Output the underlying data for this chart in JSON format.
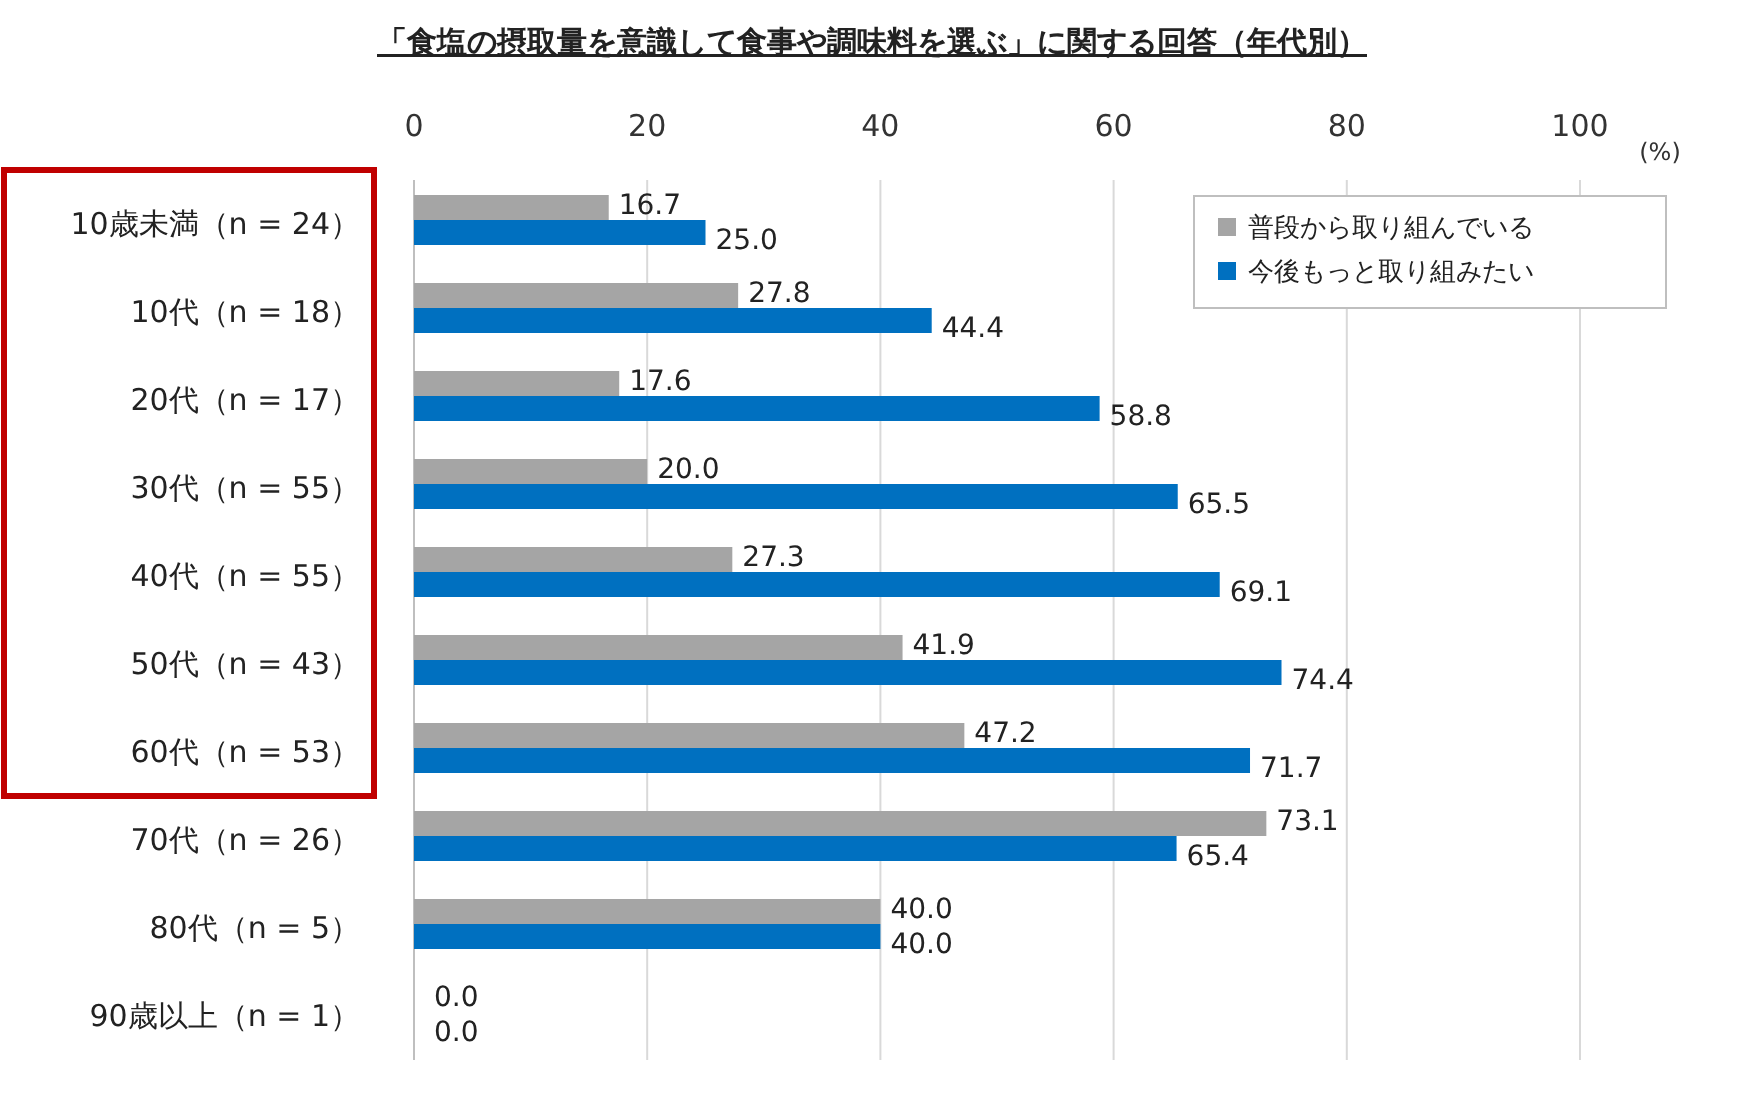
{
  "chart_data": {
    "type": "bar",
    "orientation": "horizontal",
    "title": "「食塩の摂取量を意識して食事や調味料を選ぶ」に関する回答（年代別）",
    "xlabel": "(%)",
    "categories": [
      "10歳未満（n = 24）",
      "10代（n = 18）",
      "20代（n = 17）",
      "30代（n = 55）",
      "40代（n = 55）",
      "50代（n = 43）",
      "60代（n = 53）",
      "70代（n = 26）",
      "80代（n = 5）",
      "90歳以上（n = 1）"
    ],
    "series": [
      {
        "name": "普段から取り組んでいる",
        "color": "#a5a5a5",
        "values": [
          16.7,
          27.8,
          17.6,
          20.0,
          27.3,
          41.9,
          47.2,
          73.1,
          40.0,
          0.0
        ],
        "value_labels": [
          "16.7",
          "27.8",
          "17.6",
          "20.0",
          "27.3",
          "41.9",
          "47.2",
          "73.1",
          "40.0",
          "0.0"
        ]
      },
      {
        "name": "今後もっと取り組みたい",
        "color": "#0070c0",
        "values": [
          25.0,
          44.4,
          58.8,
          65.5,
          69.1,
          74.4,
          71.7,
          65.4,
          40.0,
          0.0
        ],
        "value_labels": [
          "25.0",
          "44.4",
          "58.8",
          "65.5",
          "69.1",
          "74.4",
          "71.7",
          "65.4",
          "40.0",
          "0.0"
        ]
      }
    ],
    "xlim": [
      0,
      100
    ],
    "xticks": [
      0,
      20,
      40,
      60,
      80,
      100
    ],
    "grid": "x",
    "legend": "top right"
  }
}
